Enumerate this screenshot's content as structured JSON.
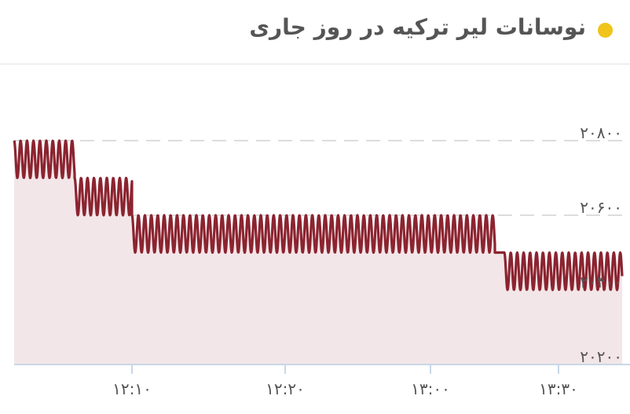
{
  "header": {
    "title": "نوسانات لیر ترکیه در روز جاری",
    "dot_color": "#f0c419"
  },
  "chart_data": {
    "type": "area",
    "title": "نوسانات لیر ترکیه در روز جاری",
    "xlabel": "",
    "ylabel": "",
    "x_tick_labels": [
      "۱۲:۱۰",
      "۱۲:۲۰",
      "۱۳:۰۰",
      "۱۳:۳۰"
    ],
    "y_tick_labels": [
      "۲۰۸۰۰",
      "۲۰۶۰۰",
      "۲۰۴۰۰",
      "۲۰۲۰۰"
    ],
    "y_ticks": [
      20800,
      20600,
      20400,
      20200
    ],
    "ylim": [
      20200,
      20900
    ],
    "grid": true,
    "colors": {
      "line": "#8b2430",
      "fill": "#f3e6e8",
      "grid": "#dddddd",
      "axis": "#c9d8e8"
    },
    "segments": [
      {
        "from": "start",
        "to": "before ۱۲:۱۰",
        "low": 20700,
        "high": 20800
      },
      {
        "from": "before ۱۲:۱۰",
        "to": "۱۲:۱۰",
        "low": 20600,
        "high": 20700
      },
      {
        "from": "۱۲:۱۰",
        "to": "after ۱۳:۰۰",
        "low": 20500,
        "high": 20600
      },
      {
        "from": "after ۱۳:۰۰",
        "to": "before ۱۳:۳۰",
        "low": 20500,
        "high": 20500
      },
      {
        "from": "before ۱۳:۳۰",
        "to": "end",
        "low": 20400,
        "high": 20500
      }
    ]
  }
}
